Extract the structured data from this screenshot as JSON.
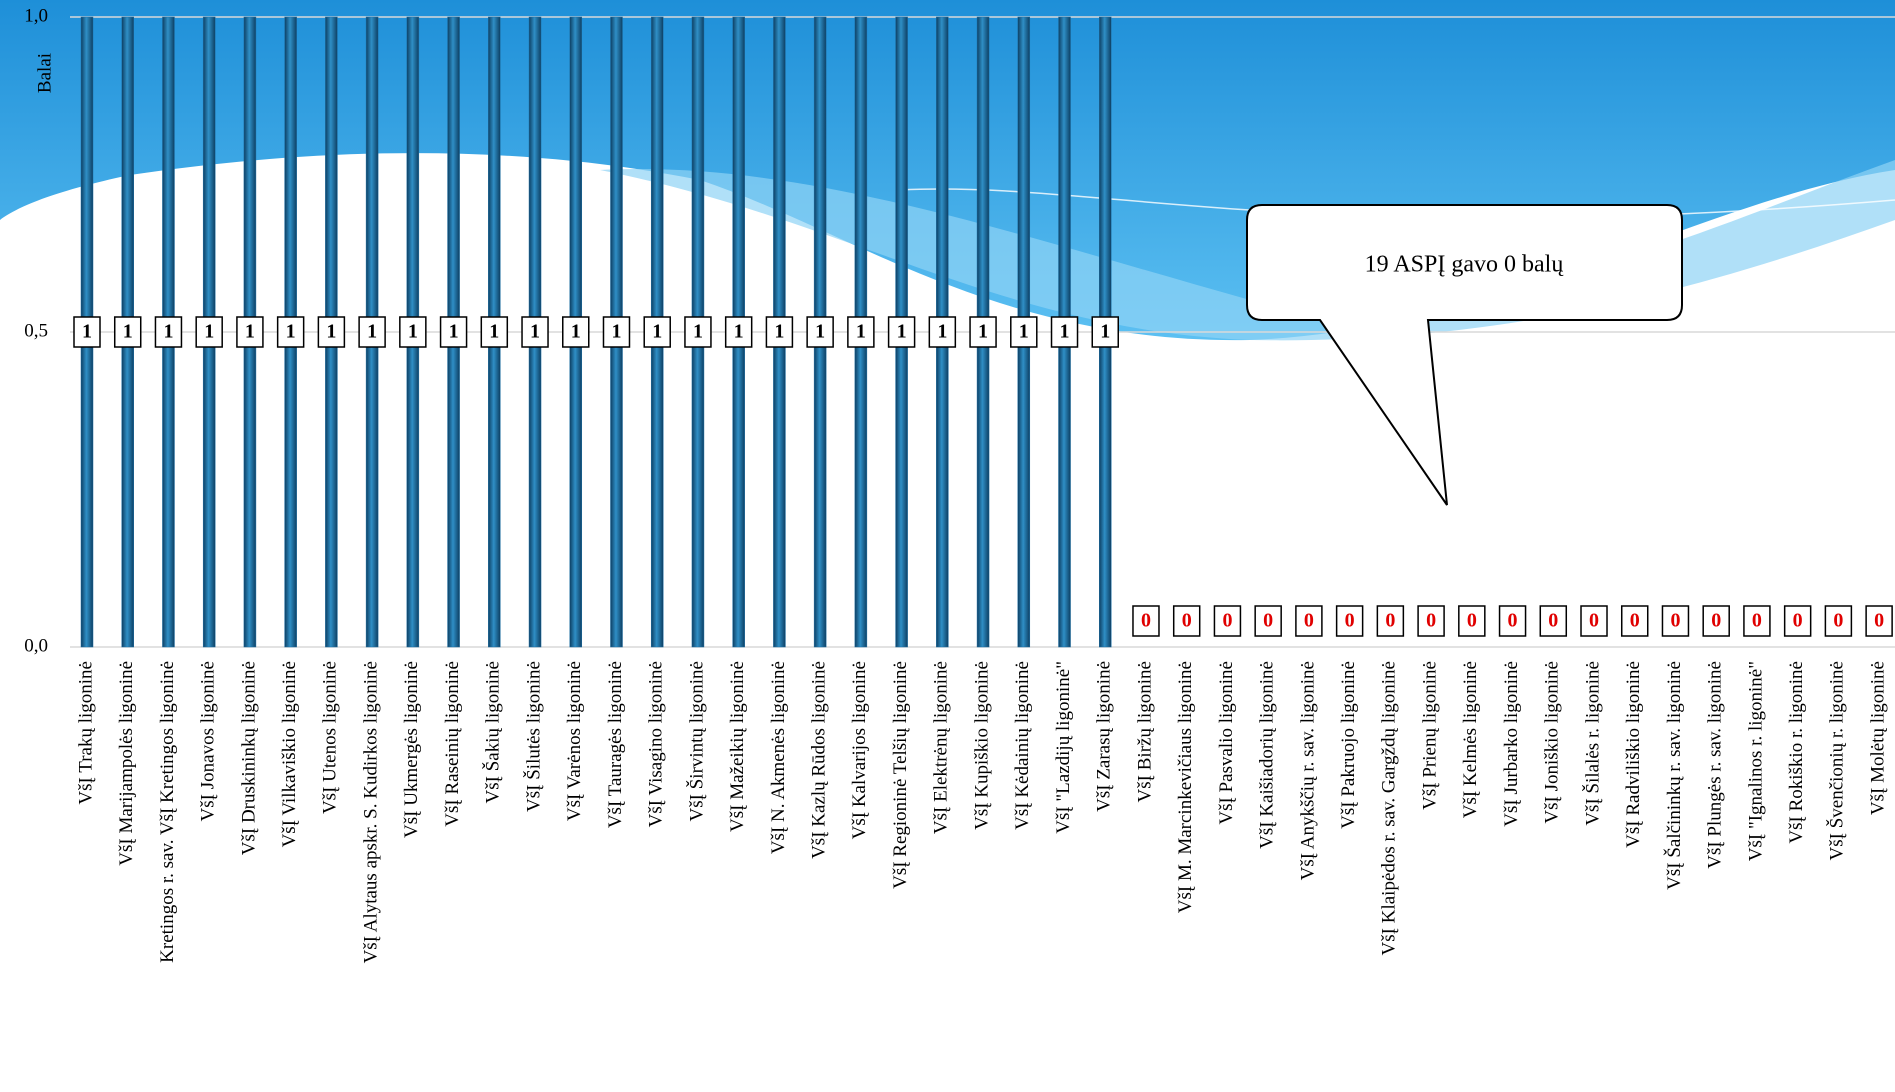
{
  "chart_data": {
    "type": "bar",
    "ylabel": "Balai",
    "categories": [
      "VšĮ Trakų ligoninė",
      "VšĮ Marijampolės ligoninė",
      "Kretingos r. sav. VšĮ Kretingos ligoninė",
      "VšĮ Jonavos ligoninė",
      "VšĮ Druskininkų ligoninė",
      "VšĮ Vilkaviškio ligoninė",
      "VšĮ Utenos ligoninė",
      "VšĮ Alytaus apskr. S. Kudirkos ligoninė",
      "VšĮ Ukmergės ligoninė",
      "VšĮ Raseinių ligoninė",
      "VšĮ Šakių ligoninė",
      "VšĮ Šilutės ligoninė",
      "VšĮ Varėnos ligoninė",
      "VšĮ Tauragės ligoninė",
      "VšĮ Visagino ligoninė",
      "VšĮ Širvintų ligoninė",
      "VšĮ Mažeikių ligoninė",
      "VšĮ N. Akmenės ligoninė",
      "VšĮ Kazlų Rūdos ligoninė",
      "VšĮ Kalvarijos ligoninė",
      "VšĮ Regioninė Telšių  ligoninė",
      "VšĮ Elektrėnų ligoninė",
      "VšĮ Kupiškio ligoninė",
      "VšĮ Kėdainių ligoninė",
      "VšĮ \"Lazdijų ligoninė\"",
      "VšĮ Zarasų ligoninė",
      "VšĮ Biržų ligoninė",
      "VšĮ M. Marcinkevičiaus ligoninė",
      "VšĮ Pasvalio ligoninė",
      "VšĮ Kaišiadorių ligoninė",
      "VšĮ Anykščių r. sav. ligoninė",
      "VšĮ Pakruojo ligoninė",
      "VšĮ Klaipėdos r. sav. Gargždų ligoninė",
      "VšĮ Prienų ligoninė",
      "VšĮ Kelmės ligoninė",
      "VšĮ Jurbarko ligoninė",
      "VšĮ Joniškio ligoninė",
      "VšĮ Šilalės r. ligoninė",
      "VšĮ Radviliškio ligoninė",
      "VšĮ Šalčininkų r. sav. ligoninė",
      "VšĮ Plungės r. sav. ligoninė",
      "VšĮ \"Ignalinos r. ligoninė\"",
      "VšĮ Rokiškio r. ligoninė",
      "VšĮ Švenčionių r. ligoninė",
      "VšĮ Molėtų ligoninė"
    ],
    "values": [
      1,
      1,
      1,
      1,
      1,
      1,
      1,
      1,
      1,
      1,
      1,
      1,
      1,
      1,
      1,
      1,
      1,
      1,
      1,
      1,
      1,
      1,
      1,
      1,
      1,
      1,
      0,
      0,
      0,
      0,
      0,
      0,
      0,
      0,
      0,
      0,
      0,
      0,
      0,
      0,
      0,
      0,
      0,
      0,
      0
    ],
    "color": "#1f6fa3",
    "ylim": [
      0,
      1
    ],
    "yticks": [
      {
        "value": 0,
        "label": "0,0"
      },
      {
        "value": 0.5,
        "label": "0,5"
      },
      {
        "value": 1,
        "label": "1,0"
      }
    ],
    "grid": true,
    "annotation": "19 ASPĮ gavo 0 balų"
  }
}
